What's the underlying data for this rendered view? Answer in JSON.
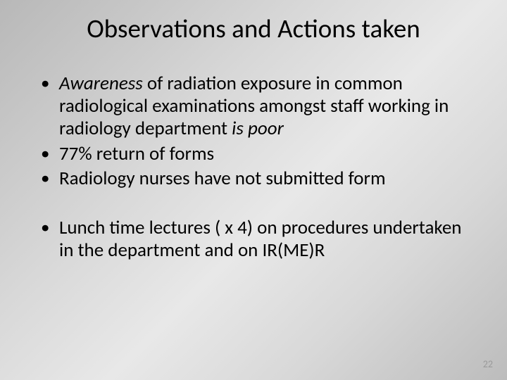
{
  "slide": {
    "title": "Observations and Actions taken",
    "bullets_group1": [
      {
        "pre_italic": "Awareness",
        "mid": " of radiation exposure in common radiological examinations amongst staff working in radiology department ",
        "post_italic": "is poor"
      },
      {
        "text": "77% return of forms"
      },
      {
        "text": "Radiology nurses have not submitted form"
      }
    ],
    "bullets_group2": [
      {
        "text": "Lunch time lectures ( x 4) on procedures undertaken in the department and on IR(ME)R"
      }
    ],
    "page_number": "22"
  },
  "style": {
    "background_gradient": [
      "#b8b8b8",
      "#d8d8d8",
      "#e8e8e8",
      "#d8d8d8",
      "#bcbcbc"
    ],
    "title_fontsize": 37,
    "body_fontsize": 27,
    "text_color": "#000000",
    "page_num_color": "#9a9a9a",
    "page_num_fontsize": 14,
    "font_family": "Calibri"
  }
}
